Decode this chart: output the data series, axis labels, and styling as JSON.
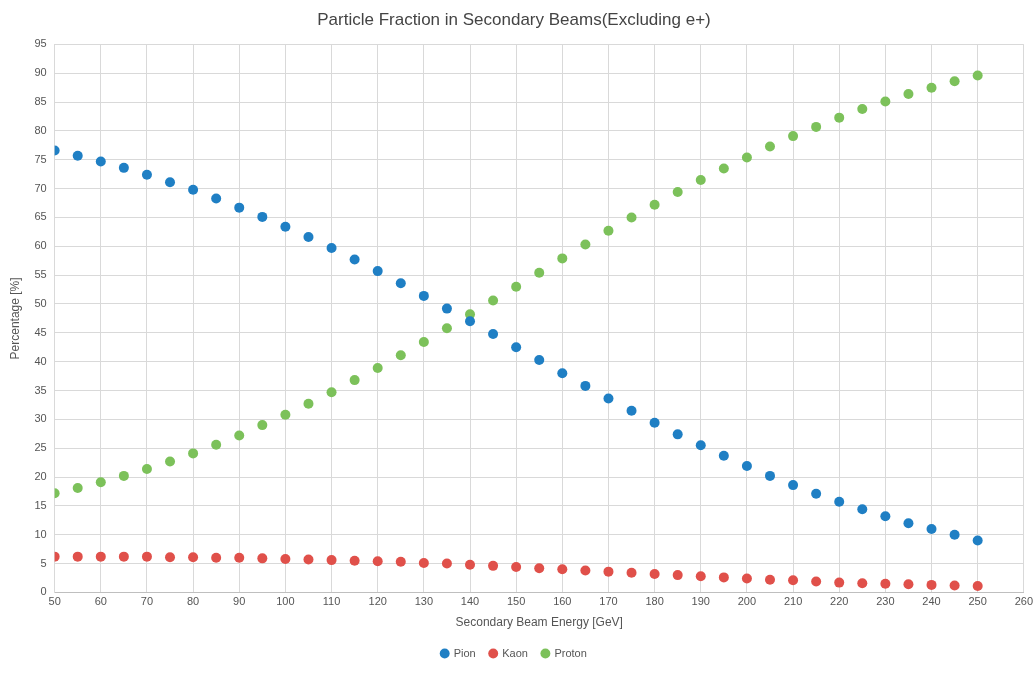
{
  "chart_data": {
    "type": "scatter",
    "title": "Particle Fraction in Secondary Beams(Excluding e+)",
    "xlabel": "Secondary Beam Energy [GeV]",
    "ylabel": "Percentage [%]",
    "x": [
      50,
      55,
      60,
      65,
      70,
      75,
      80,
      85,
      90,
      95,
      100,
      105,
      110,
      115,
      120,
      125,
      130,
      135,
      140,
      145,
      150,
      155,
      160,
      165,
      170,
      175,
      180,
      185,
      190,
      195,
      200,
      205,
      210,
      215,
      220,
      225,
      230,
      235,
      240,
      245,
      250
    ],
    "series": [
      {
        "name": "Pion",
        "color": "#1f7fc4",
        "values": [
          76.6,
          75.7,
          74.7,
          73.6,
          72.4,
          71.1,
          69.8,
          68.3,
          66.7,
          65.1,
          63.4,
          61.6,
          59.7,
          57.7,
          55.7,
          53.6,
          51.4,
          49.2,
          47.0,
          44.8,
          42.5,
          40.3,
          38.0,
          35.8,
          33.6,
          31.5,
          29.4,
          27.4,
          25.5,
          23.7,
          21.9,
          20.2,
          18.6,
          17.1,
          15.7,
          14.4,
          13.2,
          12.0,
          11.0,
          10.0,
          9.0
        ]
      },
      {
        "name": "Kaon",
        "color": "#e0504a",
        "values": [
          6.2,
          6.2,
          6.2,
          6.2,
          6.2,
          6.1,
          6.1,
          6.0,
          6.0,
          5.9,
          5.8,
          5.7,
          5.6,
          5.5,
          5.4,
          5.3,
          5.1,
          5.0,
          4.8,
          4.6,
          4.4,
          4.2,
          4.0,
          3.8,
          3.6,
          3.4,
          3.2,
          3.0,
          2.8,
          2.6,
          2.4,
          2.2,
          2.1,
          1.9,
          1.7,
          1.6,
          1.5,
          1.4,
          1.3,
          1.2,
          1.1
        ]
      },
      {
        "name": "Proton",
        "color": "#7cc15a",
        "values": [
          17.2,
          18.1,
          19.1,
          20.2,
          21.4,
          22.7,
          24.1,
          25.6,
          27.2,
          29.0,
          30.8,
          32.7,
          34.7,
          36.8,
          38.9,
          41.1,
          43.4,
          45.8,
          48.2,
          50.6,
          53.0,
          55.4,
          57.9,
          60.3,
          62.7,
          65.0,
          67.2,
          69.4,
          71.5,
          73.5,
          75.4,
          77.3,
          79.1,
          80.7,
          82.3,
          83.8,
          85.1,
          86.4,
          87.5,
          88.6,
          89.6
        ]
      }
    ],
    "xlim": [
      50,
      260
    ],
    "xticks": [
      50,
      60,
      70,
      80,
      90,
      100,
      110,
      120,
      130,
      140,
      150,
      160,
      170,
      180,
      190,
      200,
      210,
      220,
      230,
      240,
      250,
      260
    ],
    "ylim": [
      0,
      95
    ],
    "yticks": [
      0,
      5,
      10,
      15,
      20,
      25,
      30,
      35,
      40,
      45,
      50,
      55,
      60,
      65,
      70,
      75,
      80,
      85,
      90,
      95
    ],
    "grid": true,
    "legend": "bottom",
    "marker": "circle"
  }
}
